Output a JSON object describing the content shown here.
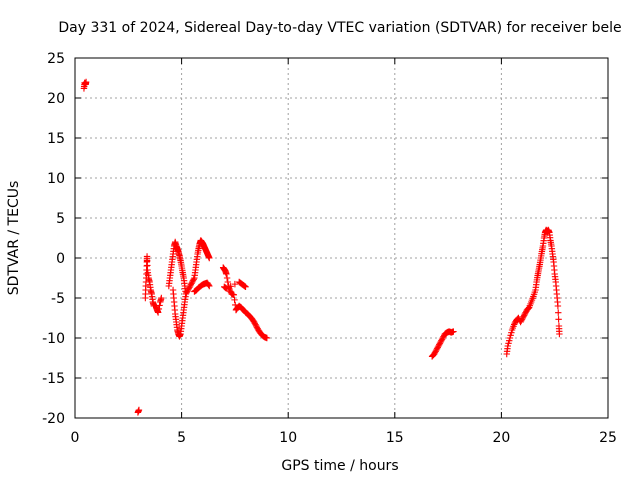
{
  "chart_data": {
    "type": "scatter",
    "title": "Day 331 of 2024, Sidereal Day-to-day VTEC variation (SDTVAR) for receiver bele",
    "xlabel": "GPS time / hours",
    "ylabel": "SDTVAR / TECUs",
    "xlim": [
      0,
      25
    ],
    "ylim": [
      -20,
      25
    ],
    "xticks": [
      0,
      5,
      10,
      15,
      20,
      25
    ],
    "yticks": [
      -20,
      -15,
      -10,
      -5,
      0,
      5,
      10,
      15,
      20,
      25
    ],
    "grid": true,
    "marker": "+",
    "series": [
      {
        "name": "SDTVAR",
        "color": "#ff0000",
        "segments": [
          [
            [
              0.42,
              21.2
            ],
            [
              0.45,
              21.9
            ],
            [
              0.5,
              21.7
            ],
            [
              0.52,
              22.0
            ]
          ],
          [
            [
              2.95,
              -19.3
            ],
            [
              3.0,
              -19.0
            ]
          ],
          [
            [
              3.3,
              -5.0
            ],
            [
              3.32,
              -3.5
            ],
            [
              3.35,
              -2.0
            ],
            [
              3.37,
              -0.5
            ],
            [
              3.38,
              0.2
            ],
            [
              3.4,
              -1.5
            ],
            [
              3.45,
              -2.5
            ],
            [
              3.5,
              -3.0
            ],
            [
              3.55,
              -4.0
            ],
            [
              3.6,
              -4.5
            ],
            [
              3.65,
              -5.5
            ],
            [
              3.7,
              -6.0
            ],
            [
              3.8,
              -6.0
            ],
            [
              3.85,
              -6.5
            ],
            [
              3.9,
              -6.8
            ],
            [
              4.0,
              -5.5
            ],
            [
              4.05,
              -5.0
            ]
          ],
          [
            [
              4.4,
              -3.5
            ],
            [
              4.45,
              -2.5
            ],
            [
              4.5,
              -1.5
            ],
            [
              4.55,
              -0.5
            ],
            [
              4.6,
              0.5
            ],
            [
              4.65,
              1.5
            ],
            [
              4.7,
              2.0
            ],
            [
              4.75,
              1.5
            ],
            [
              4.8,
              1.2
            ],
            [
              4.85,
              0.8
            ],
            [
              4.9,
              0.3
            ],
            [
              4.95,
              -0.3
            ],
            [
              5.0,
              -1.0
            ],
            [
              5.05,
              -1.8
            ],
            [
              5.1,
              -2.5
            ],
            [
              5.15,
              -3.5
            ],
            [
              5.2,
              -4.5
            ]
          ],
          [
            [
              4.6,
              -4.0
            ],
            [
              4.65,
              -5.5
            ],
            [
              4.7,
              -7.0
            ],
            [
              4.75,
              -8.0
            ],
            [
              4.8,
              -9.0
            ],
            [
              4.85,
              -9.5
            ],
            [
              4.9,
              -9.8
            ],
            [
              4.95,
              -9.5
            ],
            [
              5.0,
              -8.5
            ],
            [
              5.05,
              -7.5
            ],
            [
              5.1,
              -6.5
            ],
            [
              5.15,
              -5.5
            ],
            [
              5.2,
              -4.5
            ],
            [
              5.3,
              -4.0
            ],
            [
              5.4,
              -3.5
            ],
            [
              5.5,
              -3.0
            ],
            [
              5.6,
              -2.5
            ],
            [
              5.65,
              -1.5
            ],
            [
              5.7,
              -0.5
            ],
            [
              5.75,
              0.5
            ],
            [
              5.8,
              1.2
            ],
            [
              5.85,
              1.8
            ],
            [
              5.9,
              2.2
            ],
            [
              5.95,
              2.0
            ],
            [
              6.0,
              1.8
            ],
            [
              6.05,
              1.5
            ],
            [
              6.1,
              1.2
            ],
            [
              6.15,
              0.9
            ],
            [
              6.2,
              0.6
            ],
            [
              6.25,
              0.3
            ],
            [
              6.3,
              0.0
            ]
          ],
          [
            [
              5.6,
              -4.2
            ],
            [
              5.7,
              -4.0
            ],
            [
              5.8,
              -3.7
            ],
            [
              5.9,
              -3.5
            ],
            [
              6.0,
              -3.3
            ],
            [
              6.1,
              -3.2
            ],
            [
              6.2,
              -3.1
            ],
            [
              6.3,
              -3.5
            ]
          ],
          [
            [
              6.95,
              -1.2
            ],
            [
              7.0,
              -1.4
            ],
            [
              7.05,
              -1.6
            ],
            [
              7.1,
              -2.0
            ],
            [
              7.2,
              -3.5
            ],
            [
              7.25,
              -4.0
            ],
            [
              7.35,
              -4.5
            ],
            [
              7.45,
              -4.6
            ],
            [
              7.55,
              -6.5
            ],
            [
              7.6,
              -6.3
            ],
            [
              7.7,
              -6.0
            ],
            [
              7.8,
              -6.2
            ],
            [
              7.9,
              -6.5
            ],
            [
              8.0,
              -6.8
            ],
            [
              8.1,
              -7.0
            ],
            [
              8.2,
              -7.3
            ],
            [
              8.3,
              -7.6
            ],
            [
              8.4,
              -8.0
            ],
            [
              8.5,
              -8.5
            ],
            [
              8.6,
              -9.0
            ],
            [
              8.7,
              -9.4
            ],
            [
              8.8,
              -9.7
            ],
            [
              8.9,
              -9.9
            ],
            [
              9.0,
              -10.0
            ]
          ],
          [
            [
              7.0,
              -3.6
            ],
            [
              7.1,
              -3.8
            ],
            [
              7.7,
              -3.0
            ],
            [
              7.8,
              -3.2
            ],
            [
              7.9,
              -3.4
            ],
            [
              8.0,
              -3.6
            ]
          ],
          [
            [
              16.75,
              -12.3
            ],
            [
              16.85,
              -12.0
            ],
            [
              16.95,
              -11.5
            ],
            [
              17.05,
              -11.0
            ],
            [
              17.15,
              -10.5
            ],
            [
              17.25,
              -10.0
            ],
            [
              17.35,
              -9.5
            ],
            [
              17.45,
              -9.3
            ],
            [
              17.55,
              -9.2
            ],
            [
              17.65,
              -9.3
            ],
            [
              17.75,
              -9.2
            ]
          ],
          [
            [
              20.25,
              -12.0
            ],
            [
              20.3,
              -11.0
            ],
            [
              20.4,
              -10.0
            ],
            [
              20.5,
              -9.0
            ],
            [
              20.6,
              -8.3
            ],
            [
              20.7,
              -7.8
            ],
            [
              20.8,
              -7.5
            ],
            [
              20.9,
              -8.0
            ],
            [
              21.0,
              -7.5
            ],
            [
              21.1,
              -7.0
            ],
            [
              21.2,
              -6.5
            ],
            [
              21.3,
              -6.2
            ],
            [
              21.4,
              -5.5
            ],
            [
              21.5,
              -4.8
            ],
            [
              21.6,
              -4.0
            ],
            [
              21.65,
              -3.0
            ],
            [
              21.7,
              -2.2
            ],
            [
              21.75,
              -1.5
            ],
            [
              21.8,
              -0.8
            ],
            [
              21.85,
              0.0
            ],
            [
              21.9,
              0.8
            ],
            [
              21.95,
              1.5
            ],
            [
              22.0,
              2.5
            ],
            [
              22.05,
              3.2
            ],
            [
              22.1,
              3.5
            ],
            [
              22.15,
              3.3
            ],
            [
              22.2,
              3.5
            ],
            [
              22.25,
              3.2
            ],
            [
              22.3,
              2.2
            ],
            [
              22.35,
              1.5
            ],
            [
              22.4,
              0.5
            ],
            [
              22.45,
              -0.5
            ],
            [
              22.5,
              -2.0
            ],
            [
              22.55,
              -3.0
            ],
            [
              22.6,
              -4.5
            ],
            [
              22.65,
              -6.0
            ],
            [
              22.7,
              -8.5
            ],
            [
              22.72,
              -9.5
            ]
          ]
        ]
      }
    ]
  }
}
